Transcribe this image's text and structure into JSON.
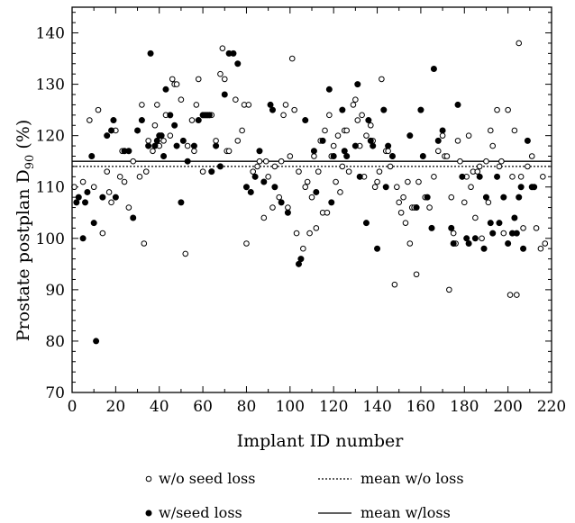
{
  "chart_data": {
    "type": "scatter",
    "xlabel": "Implant ID number",
    "ylabel_prefix": "Prostate postplan D",
    "ylabel_sub": "90",
    "ylabel_suffix": " (%)",
    "xlim": [
      0,
      220
    ],
    "ylim": [
      70,
      145
    ],
    "x_ticks": [
      0,
      20,
      40,
      60,
      80,
      100,
      120,
      140,
      160,
      180,
      200,
      220
    ],
    "y_ticks": [
      70,
      80,
      90,
      100,
      110,
      120,
      130,
      140
    ],
    "grid": false,
    "legend_placement": "bottom",
    "series": [
      {
        "name": "w/o seed loss",
        "marker": "open-circle",
        "points": [
          [
            1,
            110
          ],
          [
            5,
            111
          ],
          [
            8,
            123
          ],
          [
            10,
            110
          ],
          [
            12,
            125
          ],
          [
            14,
            101
          ],
          [
            16,
            113
          ],
          [
            17,
            109
          ],
          [
            18,
            107
          ],
          [
            20,
            121
          ],
          [
            22,
            112
          ],
          [
            23,
            117
          ],
          [
            24,
            111
          ],
          [
            26,
            106
          ],
          [
            28,
            115
          ],
          [
            31,
            112
          ],
          [
            32,
            126
          ],
          [
            33,
            99
          ],
          [
            34,
            113
          ],
          [
            35,
            119
          ],
          [
            37,
            117
          ],
          [
            38,
            122
          ],
          [
            39,
            126
          ],
          [
            40,
            118
          ],
          [
            42,
            119
          ],
          [
            43,
            124
          ],
          [
            45,
            120
          ],
          [
            46,
            131
          ],
          [
            47,
            130
          ],
          [
            48,
            130
          ],
          [
            50,
            127
          ],
          [
            52,
            97
          ],
          [
            53,
            118
          ],
          [
            55,
            123
          ],
          [
            56,
            117
          ],
          [
            57,
            126
          ],
          [
            58,
            131
          ],
          [
            60,
            113
          ],
          [
            62,
            124
          ],
          [
            64,
            124
          ],
          [
            66,
            119
          ],
          [
            68,
            132
          ],
          [
            69,
            137
          ],
          [
            70,
            131
          ],
          [
            71,
            117
          ],
          [
            72,
            117
          ],
          [
            75,
            127
          ],
          [
            76,
            119
          ],
          [
            78,
            121
          ],
          [
            79,
            126
          ],
          [
            80,
            99
          ],
          [
            81,
            126
          ],
          [
            83,
            113
          ],
          [
            85,
            114
          ],
          [
            86,
            115
          ],
          [
            88,
            104
          ],
          [
            89,
            115
          ],
          [
            90,
            112
          ],
          [
            92,
            106
          ],
          [
            93,
            114
          ],
          [
            95,
            108
          ],
          [
            96,
            115
          ],
          [
            97,
            124
          ],
          [
            98,
            126
          ],
          [
            99,
            106
          ],
          [
            100,
            116
          ],
          [
            101,
            135
          ],
          [
            102,
            125
          ],
          [
            103,
            101
          ],
          [
            104,
            113
          ],
          [
            106,
            98
          ],
          [
            107,
            110
          ],
          [
            108,
            111
          ],
          [
            109,
            101
          ],
          [
            110,
            108
          ],
          [
            111,
            116
          ],
          [
            112,
            102
          ],
          [
            113,
            113
          ],
          [
            114,
            119
          ],
          [
            115,
            105
          ],
          [
            116,
            121
          ],
          [
            117,
            105
          ],
          [
            118,
            124
          ],
          [
            119,
            116
          ],
          [
            120,
            118
          ],
          [
            121,
            111
          ],
          [
            122,
            120
          ],
          [
            123,
            109
          ],
          [
            124,
            114
          ],
          [
            125,
            121
          ],
          [
            126,
            121
          ],
          [
            127,
            113
          ],
          [
            129,
            126
          ],
          [
            130,
            127
          ],
          [
            131,
            123
          ],
          [
            132,
            118
          ],
          [
            133,
            124
          ],
          [
            134,
            112
          ],
          [
            135,
            120
          ],
          [
            137,
            122
          ],
          [
            138,
            119
          ],
          [
            139,
            110
          ],
          [
            140,
            111
          ],
          [
            141,
            113
          ],
          [
            142,
            131
          ],
          [
            144,
            117
          ],
          [
            145,
            117
          ],
          [
            146,
            114
          ],
          [
            147,
            116
          ],
          [
            148,
            91
          ],
          [
            149,
            110
          ],
          [
            150,
            107
          ],
          [
            151,
            105
          ],
          [
            152,
            108
          ],
          [
            153,
            103
          ],
          [
            154,
            111
          ],
          [
            155,
            99
          ],
          [
            156,
            106
          ],
          [
            157,
            106
          ],
          [
            158,
            93
          ],
          [
            159,
            111
          ],
          [
            160,
            125
          ],
          [
            162,
            108
          ],
          [
            164,
            106
          ],
          [
            166,
            112
          ],
          [
            168,
            117
          ],
          [
            170,
            120
          ],
          [
            171,
            116
          ],
          [
            172,
            116
          ],
          [
            173,
            90
          ],
          [
            174,
            108
          ],
          [
            175,
            101
          ],
          [
            176,
            99
          ],
          [
            177,
            119
          ],
          [
            178,
            115
          ],
          [
            180,
            107
          ],
          [
            181,
            112
          ],
          [
            182,
            120
          ],
          [
            183,
            110
          ],
          [
            184,
            113
          ],
          [
            185,
            104
          ],
          [
            186,
            113
          ],
          [
            187,
            114
          ],
          [
            188,
            100
          ],
          [
            189,
            98
          ],
          [
            190,
            115
          ],
          [
            191,
            107
          ],
          [
            192,
            121
          ],
          [
            193,
            118
          ],
          [
            195,
            125
          ],
          [
            196,
            114
          ],
          [
            197,
            115
          ],
          [
            198,
            101
          ],
          [
            200,
            125
          ],
          [
            201,
            89
          ],
          [
            202,
            112
          ],
          [
            203,
            121
          ],
          [
            204,
            89
          ],
          [
            205,
            138
          ],
          [
            206,
            112
          ],
          [
            207,
            102
          ],
          [
            209,
            114
          ],
          [
            211,
            116
          ],
          [
            213,
            102
          ],
          [
            215,
            98
          ],
          [
            216,
            112
          ],
          [
            217,
            99
          ]
        ]
      },
      {
        "name": "w/seed loss",
        "marker": "filled-circle",
        "points": [
          [
            2,
            107
          ],
          [
            3,
            108
          ],
          [
            5,
            100
          ],
          [
            6,
            107
          ],
          [
            7,
            109
          ],
          [
            9,
            116
          ],
          [
            10,
            103
          ],
          [
            11,
            80
          ],
          [
            14,
            108
          ],
          [
            16,
            120
          ],
          [
            18,
            121
          ],
          [
            19,
            123
          ],
          [
            20,
            108
          ],
          [
            24,
            117
          ],
          [
            26,
            117
          ],
          [
            28,
            104
          ],
          [
            30,
            121
          ],
          [
            32,
            123
          ],
          [
            35,
            118
          ],
          [
            36,
            136
          ],
          [
            38,
            118
          ],
          [
            39,
            119
          ],
          [
            40,
            120
          ],
          [
            41,
            120
          ],
          [
            42,
            116
          ],
          [
            43,
            129
          ],
          [
            45,
            124
          ],
          [
            47,
            122
          ],
          [
            48,
            118
          ],
          [
            50,
            107
          ],
          [
            51,
            119
          ],
          [
            53,
            115
          ],
          [
            56,
            118
          ],
          [
            58,
            123
          ],
          [
            60,
            124
          ],
          [
            61,
            124
          ],
          [
            62,
            124
          ],
          [
            63,
            124
          ],
          [
            64,
            113
          ],
          [
            66,
            118
          ],
          [
            68,
            114
          ],
          [
            70,
            128
          ],
          [
            72,
            136
          ],
          [
            74,
            136
          ],
          [
            76,
            134
          ],
          [
            80,
            110
          ],
          [
            82,
            109
          ],
          [
            84,
            112
          ],
          [
            86,
            117
          ],
          [
            88,
            111
          ],
          [
            91,
            126
          ],
          [
            92,
            125
          ],
          [
            93,
            110
          ],
          [
            96,
            107
          ],
          [
            99,
            105
          ],
          [
            104,
            95
          ],
          [
            105,
            96
          ],
          [
            107,
            123
          ],
          [
            111,
            117
          ],
          [
            112,
            109
          ],
          [
            115,
            119
          ],
          [
            118,
            129
          ],
          [
            119,
            107
          ],
          [
            120,
            116
          ],
          [
            124,
            125
          ],
          [
            125,
            117
          ],
          [
            126,
            116
          ],
          [
            130,
            118
          ],
          [
            131,
            130
          ],
          [
            132,
            112
          ],
          [
            135,
            103
          ],
          [
            136,
            123
          ],
          [
            137,
            119
          ],
          [
            138,
            118
          ],
          [
            140,
            98
          ],
          [
            143,
            125
          ],
          [
            144,
            110
          ],
          [
            145,
            118
          ],
          [
            147,
            116
          ],
          [
            155,
            120
          ],
          [
            158,
            106
          ],
          [
            160,
            125
          ],
          [
            161,
            116
          ],
          [
            163,
            108
          ],
          [
            165,
            102
          ],
          [
            166,
            133
          ],
          [
            168,
            119
          ],
          [
            170,
            121
          ],
          [
            174,
            102
          ],
          [
            175,
            99
          ],
          [
            177,
            126
          ],
          [
            179,
            112
          ],
          [
            181,
            100
          ],
          [
            182,
            99
          ],
          [
            185,
            100
          ],
          [
            187,
            112
          ],
          [
            189,
            98
          ],
          [
            190,
            108
          ],
          [
            192,
            103
          ],
          [
            193,
            101
          ],
          [
            195,
            112
          ],
          [
            196,
            103
          ],
          [
            198,
            108
          ],
          [
            200,
            99
          ],
          [
            202,
            101
          ],
          [
            203,
            104
          ],
          [
            204,
            101
          ],
          [
            205,
            108
          ],
          [
            206,
            110
          ],
          [
            207,
            98
          ],
          [
            209,
            119
          ],
          [
            211,
            110
          ],
          [
            212,
            110
          ]
        ]
      }
    ],
    "lines": [
      {
        "name": "mean w/o loss",
        "style": "dotted",
        "y": 114
      },
      {
        "name": "mean w/loss",
        "style": "solid",
        "y": 115
      }
    ]
  }
}
